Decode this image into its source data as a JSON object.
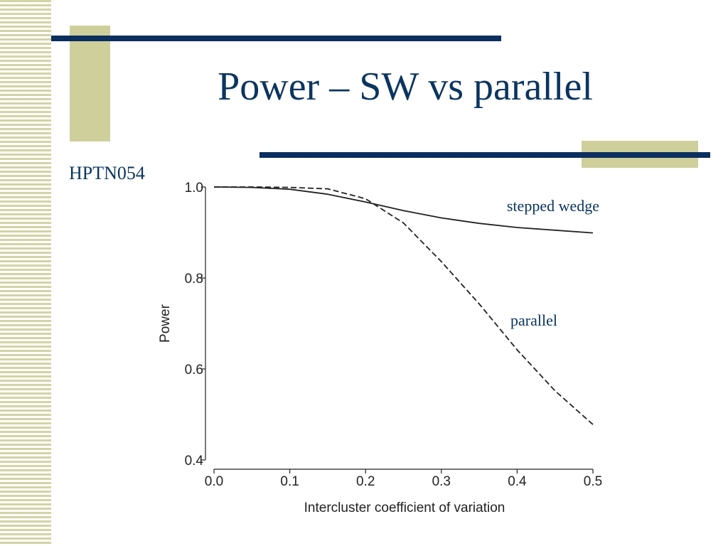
{
  "slide": {
    "title": "Power – SW vs parallel",
    "subtitle": "HPTN054"
  },
  "colors": {
    "title": "#0b3560",
    "rule": "#0b2f5e",
    "accent_block": "#cfcf9c",
    "stripe": "#d3d3a6"
  },
  "chart_data": {
    "type": "line",
    "xlabel": "Intercluster coefficient of variation",
    "ylabel": "Power",
    "xlim": [
      0.0,
      0.5
    ],
    "ylim": [
      0.4,
      1.0
    ],
    "x_ticks": [
      "0.0",
      "0.1",
      "0.2",
      "0.3",
      "0.4",
      "0.5"
    ],
    "y_ticks": [
      "0.4",
      "0.6",
      "0.8",
      "1.0"
    ],
    "grid": false,
    "series": [
      {
        "name": "stepped wedge",
        "line_style": "solid",
        "x": [
          0.0,
          0.05,
          0.1,
          0.15,
          0.2,
          0.25,
          0.3,
          0.35,
          0.4,
          0.45,
          0.5
        ],
        "values": [
          1.0,
          0.999,
          0.995,
          0.984,
          0.967,
          0.948,
          0.932,
          0.92,
          0.911,
          0.905,
          0.899
        ]
      },
      {
        "name": "parallel",
        "line_style": "dashed",
        "x": [
          0.0,
          0.05,
          0.1,
          0.15,
          0.2,
          0.25,
          0.3,
          0.35,
          0.4,
          0.45,
          0.5
        ],
        "values": [
          1.0,
          1.0,
          0.999,
          0.996,
          0.974,
          0.921,
          0.836,
          0.743,
          0.642,
          0.552,
          0.478
        ]
      }
    ]
  }
}
